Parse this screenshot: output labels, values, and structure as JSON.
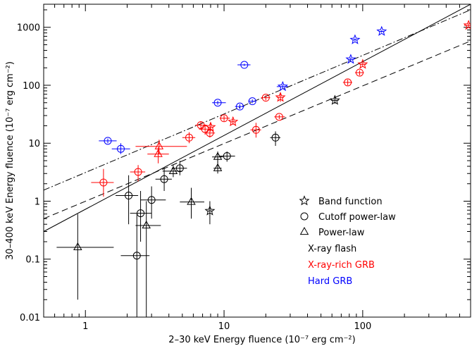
{
  "chart_data": {
    "type": "scatter",
    "xlabel": "2–30 keV Energy fluence (10⁻⁷ erg cm⁻²)",
    "ylabel": "30–400 keV Energy fluence (10⁻⁷ erg cm⁻²)",
    "xscale": "log",
    "yscale": "log",
    "xlim": [
      0.5,
      600
    ],
    "ylim": [
      0.01,
      2500
    ],
    "x_ticks": [
      {
        "value": 1,
        "label": "1"
      },
      {
        "value": 10,
        "label": "10"
      },
      {
        "value": 100,
        "label": "100"
      }
    ],
    "y_ticks": [
      {
        "value": 0.01,
        "label": "0.01"
      },
      {
        "value": 0.1,
        "label": "0.1"
      },
      {
        "value": 1,
        "label": "1"
      },
      {
        "value": 10,
        "label": "10"
      },
      {
        "value": 100,
        "label": "100"
      },
      {
        "value": 1000,
        "label": "1000"
      }
    ],
    "legend_position": "lower-right",
    "legend": {
      "markers": [
        {
          "marker": "star",
          "label": "Band function"
        },
        {
          "marker": "circle",
          "label": "Cutoff power-law"
        },
        {
          "marker": "triangle",
          "label": "Power-law"
        }
      ],
      "classes": [
        {
          "color": "#000000",
          "label": "X-ray flash"
        },
        {
          "color": "#ff0000",
          "label": "X-ray-rich GRB"
        },
        {
          "color": "#0000ff",
          "label": "Hard GRB"
        }
      ]
    },
    "lines": [
      {
        "style": "solid",
        "p1": [
          0.5,
          0.3
        ],
        "p2": [
          600,
          2500
        ]
      },
      {
        "style": "dashed",
        "p1": [
          0.5,
          0.5
        ],
        "p2": [
          600,
          580
        ]
      },
      {
        "style": "dashdot",
        "p1": [
          0.5,
          1.55
        ],
        "p2": [
          600,
          2000
        ]
      }
    ],
    "series": [
      {
        "class": "X-ray flash",
        "color": "#000000",
        "points": [
          {
            "m": "triangle",
            "x": 0.88,
            "y": 0.16,
            "xe": [
              0.62,
              1.6
            ],
            "ye": [
              0.02,
              0.6
            ]
          },
          {
            "m": "circle",
            "x": 2.05,
            "y": 1.25,
            "xe": [
              1.65,
              2.4
            ],
            "ye": [
              0.4,
              2.8
            ]
          },
          {
            "m": "circle",
            "x": 2.35,
            "y": 0.115,
            "xe": [
              1.8,
              2.9
            ],
            "ye": [
              0.01,
              0.6
            ]
          },
          {
            "m": "circle",
            "x": 2.5,
            "y": 0.62,
            "xe": [
              2.1,
              3.0
            ],
            "ye": [
              0.2,
              1.5
            ]
          },
          {
            "m": "triangle",
            "x": 2.75,
            "y": 0.38,
            "xe": [
              2.3,
              3.5
            ],
            "ye": [
              0.01,
              1.0
            ]
          },
          {
            "m": "circle",
            "x": 3.0,
            "y": 1.05,
            "xe": [
              2.5,
              3.8
            ],
            "ye": [
              0.5,
              1.8
            ]
          },
          {
            "m": "circle",
            "x": 3.7,
            "y": 2.4,
            "xe": [
              3.2,
              4.2
            ],
            "ye": [
              1.5,
              3.8
            ]
          },
          {
            "m": "triangle",
            "x": 4.3,
            "y": 3.3,
            "xe": [
              3.6,
              5.0
            ],
            "ye": [
              2.6,
              4.2
            ]
          },
          {
            "m": "circle",
            "x": 4.8,
            "y": 3.7,
            "xe": [
              4.2,
              5.4
            ],
            "ye": [
              2.8,
              5.0
            ]
          },
          {
            "m": "triangle",
            "x": 5.8,
            "y": 0.97,
            "xe": [
              4.8,
              7.2
            ],
            "ye": [
              0.5,
              1.7
            ]
          },
          {
            "m": "star",
            "x": 7.9,
            "y": 0.68,
            "xe": [
              7.6,
              8.2
            ],
            "ye": [
              0.4,
              1.0
            ]
          },
          {
            "m": "triangle",
            "x": 9.0,
            "y": 3.7,
            "xe": [
              8.4,
              9.6
            ],
            "ye": [
              3.0,
              5.0
            ]
          },
          {
            "m": "triangle",
            "x": 9.0,
            "y": 5.8,
            "xe": [
              8.2,
              9.8
            ],
            "ye": [
              4.5,
              7.2
            ]
          },
          {
            "m": "circle",
            "x": 10.5,
            "y": 6.0,
            "xe": [
              9.2,
              12.0
            ],
            "ye": [
              4.8,
              7.2
            ]
          },
          {
            "m": "circle",
            "x": 23.5,
            "y": 12.5,
            "xe": [
              21.5,
              25.5
            ],
            "ye": [
              9.0,
              16.0
            ]
          },
          {
            "m": "star",
            "x": 63,
            "y": 55,
            "xe": [
              59,
              67
            ],
            "ye": [
              48,
              62
            ]
          }
        ]
      },
      {
        "class": "X-ray-rich GRB",
        "color": "#ff0000",
        "points": [
          {
            "m": "circle",
            "x": 1.35,
            "y": 2.1,
            "xe": [
              1.1,
              1.6
            ],
            "ye": [
              1.2,
              3.6
            ]
          },
          {
            "m": "circle",
            "x": 2.4,
            "y": 3.2,
            "xe": [
              2.1,
              2.7
            ],
            "ye": [
              2.2,
              4.2
            ]
          },
          {
            "m": "triangle",
            "x": 3.35,
            "y": 6.5,
            "xe": [
              2.8,
              4.0
            ],
            "ye": [
              4.5,
              8.5
            ]
          },
          {
            "m": "triangle",
            "x": 3.4,
            "y": 8.8,
            "xe": [
              2.3,
              5.4
            ],
            "ye": [
              6.5,
              11.5
            ]
          },
          {
            "m": "circle",
            "x": 5.6,
            "y": 12.5,
            "xe": [
              5.0,
              6.2
            ],
            "ye": [
              10.0,
              15.5
            ]
          },
          {
            "m": "circle",
            "x": 6.8,
            "y": 20.5,
            "xe": [
              6.2,
              7.5
            ],
            "ye": [
              17.0,
              24.0
            ]
          },
          {
            "m": "circle",
            "x": 7.3,
            "y": 17.5,
            "xe": [
              6.6,
              8.0
            ],
            "ye": [
              14.0,
              21.0
            ]
          },
          {
            "m": "circle",
            "x": 7.9,
            "y": 15.0,
            "xe": [
              7.3,
              8.6
            ],
            "ye": [
              12.5,
              18.5
            ]
          },
          {
            "m": "star",
            "x": 8.0,
            "y": 19.0,
            "xe": [
              7.6,
              8.4
            ],
            "ye": [
              16.0,
              22.0
            ]
          },
          {
            "m": "circle",
            "x": 10.0,
            "y": 27.0,
            "xe": [
              9.3,
              11.0
            ],
            "ye": [
              24.0,
              30.0
            ]
          },
          {
            "m": "star",
            "x": 11.6,
            "y": 23.5,
            "xe": [
              11.0,
              12.2
            ],
            "ye": [
              21.0,
              26.0
            ]
          },
          {
            "m": "circle",
            "x": 17.0,
            "y": 17.0,
            "xe": [
              15.5,
              18.5
            ],
            "ye": [
              12.5,
              22.5
            ]
          },
          {
            "m": "circle",
            "x": 20.0,
            "y": 61.0,
            "xe": [
              18.5,
              21.5
            ],
            "ye": [
              55.0,
              67.0
            ]
          },
          {
            "m": "circle",
            "x": 25.0,
            "y": 28.5,
            "xe": [
              23.0,
              27.5
            ],
            "ye": [
              26.0,
              31.0
            ]
          },
          {
            "m": "star",
            "x": 25.5,
            "y": 62.0,
            "xe": [
              24.0,
              27.0
            ],
            "ye": [
              52.0,
              72.0
            ]
          },
          {
            "m": "circle",
            "x": 78,
            "y": 112,
            "xe": [
              72,
              84
            ],
            "ye": [
              100,
              125
            ]
          },
          {
            "m": "circle",
            "x": 95,
            "y": 165,
            "xe": [
              88,
              102
            ],
            "ye": [
              148,
              180
            ]
          },
          {
            "m": "star",
            "x": 100,
            "y": 230,
            "xe": [
              95,
              106
            ],
            "ye": [
              210,
              250
            ]
          },
          {
            "m": "star",
            "x": 580,
            "y": 1080,
            "xe": [
              540,
              620
            ],
            "ye": [
              980,
              1180
            ]
          }
        ]
      },
      {
        "class": "Hard GRB",
        "color": "#0000ff",
        "points": [
          {
            "m": "circle",
            "x": 1.45,
            "y": 11.0,
            "xe": [
              1.25,
              1.68
            ],
            "ye": [
              10.0,
              12.0
            ]
          },
          {
            "m": "circle",
            "x": 1.8,
            "y": 8.0,
            "xe": [
              1.55,
              2.1
            ],
            "ye": [
              6.5,
              10.0
            ]
          },
          {
            "m": "circle",
            "x": 9.0,
            "y": 50.0,
            "xe": [
              8.2,
              10.3
            ],
            "ye": [
              46.0,
              54.0
            ]
          },
          {
            "m": "circle",
            "x": 13.0,
            "y": 43.0,
            "xe": [
              12.0,
              14.0
            ],
            "ye": [
              39.0,
              47.0
            ]
          },
          {
            "m": "circle",
            "x": 14.0,
            "y": 225.0,
            "xe": [
              12.5,
              15.5
            ],
            "ye": [
              215.0,
              235.0
            ]
          },
          {
            "m": "circle",
            "x": 16.0,
            "y": 53.0,
            "xe": [
              15.0,
              17.0
            ],
            "ye": [
              49.0,
              57.0
            ]
          },
          {
            "m": "star",
            "x": 26.5,
            "y": 95.0,
            "xe": [
              24.0,
              29.0
            ],
            "ye": [
              88.0,
              102.0
            ]
          },
          {
            "m": "star",
            "x": 82.0,
            "y": 280.0,
            "xe": [
              79.0,
              85.0
            ],
            "ye": [
              260.0,
              300.0
            ]
          },
          {
            "m": "star",
            "x": 88.0,
            "y": 610.0,
            "xe": [
              85.0,
              91.0
            ],
            "ye": [
              580.0,
              640.0
            ]
          },
          {
            "m": "star",
            "x": 137.0,
            "y": 850.0,
            "xe": [
              132.0,
              142.0
            ],
            "ye": [
              810.0,
              890.0
            ]
          }
        ]
      }
    ]
  }
}
